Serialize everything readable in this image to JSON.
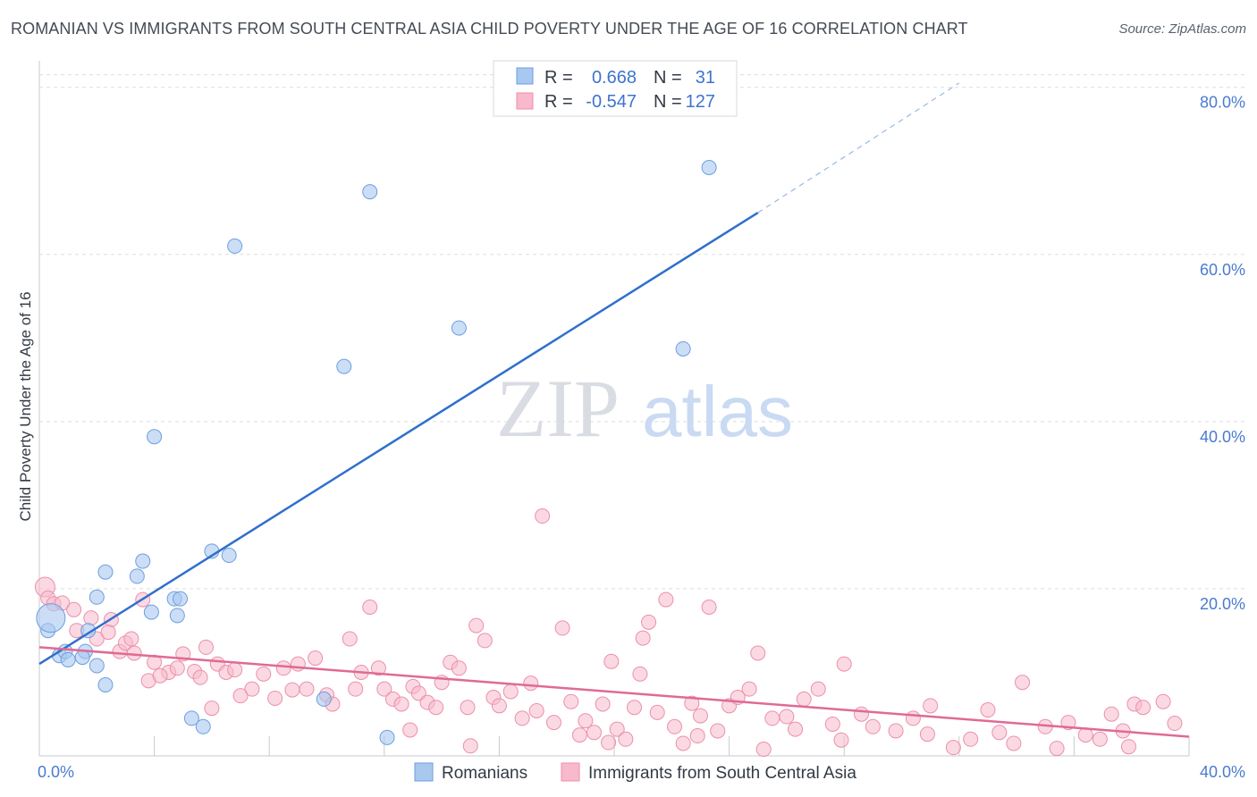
{
  "header": {
    "title": "ROMANIAN VS IMMIGRANTS FROM SOUTH CENTRAL ASIA CHILD POVERTY UNDER THE AGE OF 16 CORRELATION CHART",
    "source": "Source: ZipAtlas.com"
  },
  "watermark": {
    "zip": "ZIP",
    "atlas": "atlas"
  },
  "colors": {
    "blue_fill": "#a8c8f0",
    "blue_stroke": "#6d9ee0",
    "blue_line": "#2f6fcd",
    "pink_fill": "#f7b9cb",
    "pink_stroke": "#ec8fab",
    "pink_line": "#e06a95",
    "grid": "#d9dde3",
    "axis_text": "#4a7bd0"
  },
  "legend": {
    "rows": [
      {
        "r_label": "R =",
        "r_value": "0.668",
        "n_label": "N =",
        "n_value": "31"
      },
      {
        "r_label": "R =",
        "r_value": "-0.547",
        "n_label": "N =",
        "n_value": "127"
      }
    ]
  },
  "chart_data": {
    "type": "scatter",
    "title": "ROMANIAN VS IMMIGRANTS FROM SOUTH CENTRAL ASIA CHILD POVERTY UNDER THE AGE OF 16 CORRELATION CHART",
    "xlabel": "",
    "ylabel": "Child Poverty Under the Age of 16",
    "xlim": [
      0,
      40
    ],
    "ylim": [
      0,
      82
    ],
    "x_tick_labels": [
      "0.0%",
      "40.0%"
    ],
    "y_ticks": [
      20,
      40,
      60,
      80
    ],
    "y_tick_labels": [
      "20.0%",
      "40.0%",
      "60.0%",
      "80.0%"
    ],
    "grid": true,
    "series": [
      {
        "name": "Romanians",
        "color": "blue",
        "r": 0.668,
        "n": 31,
        "trend": {
          "x0": 0,
          "y0": 11.0,
          "x1": 25.0,
          "y1": 65.0,
          "dash_to_x": 32.0,
          "dash_to_y": 80.5
        },
        "points": [
          [
            0.3,
            15.0
          ],
          [
            0.4,
            16.5
          ],
          [
            0.7,
            12.0
          ],
          [
            0.9,
            12.5
          ],
          [
            1.0,
            11.5
          ],
          [
            1.6,
            12.5
          ],
          [
            1.7,
            15.0
          ],
          [
            1.5,
            11.8
          ],
          [
            2.0,
            10.8
          ],
          [
            2.3,
            22.0
          ],
          [
            2.0,
            19.0
          ],
          [
            2.3,
            8.5
          ],
          [
            3.4,
            21.5
          ],
          [
            3.6,
            23.3
          ],
          [
            3.9,
            17.2
          ],
          [
            4.0,
            38.2
          ],
          [
            4.7,
            18.8
          ],
          [
            4.9,
            18.8
          ],
          [
            4.8,
            16.8
          ],
          [
            5.3,
            4.5
          ],
          [
            5.7,
            3.5
          ],
          [
            6.0,
            24.5
          ],
          [
            6.6,
            24.0
          ],
          [
            6.8,
            61.0
          ],
          [
            9.9,
            6.8
          ],
          [
            10.6,
            46.6
          ],
          [
            11.5,
            67.5
          ],
          [
            12.1,
            2.2
          ],
          [
            14.6,
            51.2
          ],
          [
            22.4,
            48.7
          ],
          [
            23.3,
            70.4
          ]
        ]
      },
      {
        "name": "Immigrants from South Central Asia",
        "color": "pink",
        "r": -0.547,
        "n": 127,
        "trend": {
          "x0": 0,
          "y0": 13.0,
          "x1": 40.0,
          "y1": 2.3
        },
        "points": [
          [
            0.2,
            20.2
          ],
          [
            0.3,
            18.9
          ],
          [
            0.5,
            18.2
          ],
          [
            0.8,
            18.3
          ],
          [
            1.2,
            17.5
          ],
          [
            1.3,
            15.0
          ],
          [
            1.8,
            16.5
          ],
          [
            2.0,
            14.0
          ],
          [
            2.5,
            16.3
          ],
          [
            2.8,
            12.5
          ],
          [
            3.0,
            13.5
          ],
          [
            3.2,
            14.0
          ],
          [
            3.3,
            12.3
          ],
          [
            3.6,
            18.7
          ],
          [
            3.8,
            9.0
          ],
          [
            4.0,
            11.2
          ],
          [
            4.5,
            10.0
          ],
          [
            4.8,
            10.5
          ],
          [
            5.0,
            12.2
          ],
          [
            5.4,
            10.1
          ],
          [
            5.6,
            9.4
          ],
          [
            5.8,
            13.0
          ],
          [
            6.2,
            11.0
          ],
          [
            6.5,
            10.0
          ],
          [
            6.8,
            10.3
          ],
          [
            7.0,
            7.2
          ],
          [
            7.4,
            8.0
          ],
          [
            7.8,
            9.8
          ],
          [
            8.2,
            6.9
          ],
          [
            8.5,
            10.5
          ],
          [
            9.0,
            11.0
          ],
          [
            9.3,
            8.0
          ],
          [
            9.6,
            11.7
          ],
          [
            10.0,
            7.3
          ],
          [
            10.2,
            6.2
          ],
          [
            10.8,
            14.0
          ],
          [
            11.0,
            8.0
          ],
          [
            11.2,
            10.0
          ],
          [
            11.5,
            17.8
          ],
          [
            11.8,
            10.5
          ],
          [
            12.0,
            8.0
          ],
          [
            12.3,
            6.8
          ],
          [
            12.6,
            6.2
          ],
          [
            13.0,
            8.3
          ],
          [
            13.2,
            7.5
          ],
          [
            13.5,
            6.4
          ],
          [
            13.8,
            5.8
          ],
          [
            14.0,
            8.8
          ],
          [
            14.3,
            11.2
          ],
          [
            14.6,
            10.5
          ],
          [
            14.9,
            5.8
          ],
          [
            15.2,
            15.6
          ],
          [
            15.5,
            13.8
          ],
          [
            15.8,
            7.0
          ],
          [
            16.0,
            6.0
          ],
          [
            16.4,
            7.7
          ],
          [
            16.8,
            4.5
          ],
          [
            17.1,
            8.7
          ],
          [
            17.5,
            28.7
          ],
          [
            17.9,
            4.0
          ],
          [
            18.2,
            15.3
          ],
          [
            18.5,
            6.5
          ],
          [
            18.8,
            2.5
          ],
          [
            19.0,
            4.2
          ],
          [
            19.3,
            2.8
          ],
          [
            19.6,
            6.2
          ],
          [
            19.9,
            11.3
          ],
          [
            20.1,
            3.2
          ],
          [
            20.4,
            2.0
          ],
          [
            20.7,
            5.8
          ],
          [
            21.0,
            14.1
          ],
          [
            21.2,
            16.0
          ],
          [
            21.5,
            5.2
          ],
          [
            21.8,
            18.7
          ],
          [
            22.1,
            3.5
          ],
          [
            22.4,
            1.5
          ],
          [
            22.7,
            6.3
          ],
          [
            23.0,
            4.8
          ],
          [
            23.3,
            17.8
          ],
          [
            23.6,
            3.0
          ],
          [
            24.0,
            6.0
          ],
          [
            24.3,
            7.0
          ],
          [
            24.7,
            8.0
          ],
          [
            25.0,
            12.3
          ],
          [
            25.5,
            4.5
          ],
          [
            26.0,
            4.7
          ],
          [
            26.3,
            3.2
          ],
          [
            26.6,
            6.8
          ],
          [
            27.1,
            8.0
          ],
          [
            27.6,
            3.8
          ],
          [
            28.0,
            11.0
          ],
          [
            28.6,
            5.0
          ],
          [
            29.0,
            3.5
          ],
          [
            29.8,
            3.0
          ],
          [
            30.4,
            4.5
          ],
          [
            31.0,
            6.0
          ],
          [
            31.8,
            1.0
          ],
          [
            32.4,
            2.0
          ],
          [
            33.0,
            5.5
          ],
          [
            33.4,
            2.8
          ],
          [
            34.2,
            8.8
          ],
          [
            35.0,
            3.5
          ],
          [
            35.8,
            4.0
          ],
          [
            36.4,
            2.5
          ],
          [
            36.9,
            2.0
          ],
          [
            37.3,
            5.0
          ],
          [
            37.7,
            3.0
          ],
          [
            38.1,
            6.2
          ],
          [
            38.4,
            5.8
          ],
          [
            39.1,
            6.5
          ],
          [
            39.5,
            3.9
          ],
          [
            2.4,
            14.8
          ],
          [
            4.2,
            9.6
          ],
          [
            6.0,
            5.7
          ],
          [
            8.8,
            7.9
          ],
          [
            12.9,
            3.1
          ],
          [
            15.0,
            1.2
          ],
          [
            17.3,
            5.4
          ],
          [
            19.8,
            1.6
          ],
          [
            22.9,
            2.4
          ],
          [
            25.2,
            0.8
          ],
          [
            27.9,
            1.9
          ],
          [
            30.9,
            2.6
          ],
          [
            33.9,
            1.5
          ],
          [
            35.4,
            0.9
          ],
          [
            37.9,
            1.1
          ],
          [
            20.9,
            9.8
          ]
        ]
      }
    ],
    "legend_labels": [
      "Romanians",
      "Immigrants from South Central Asia"
    ]
  }
}
